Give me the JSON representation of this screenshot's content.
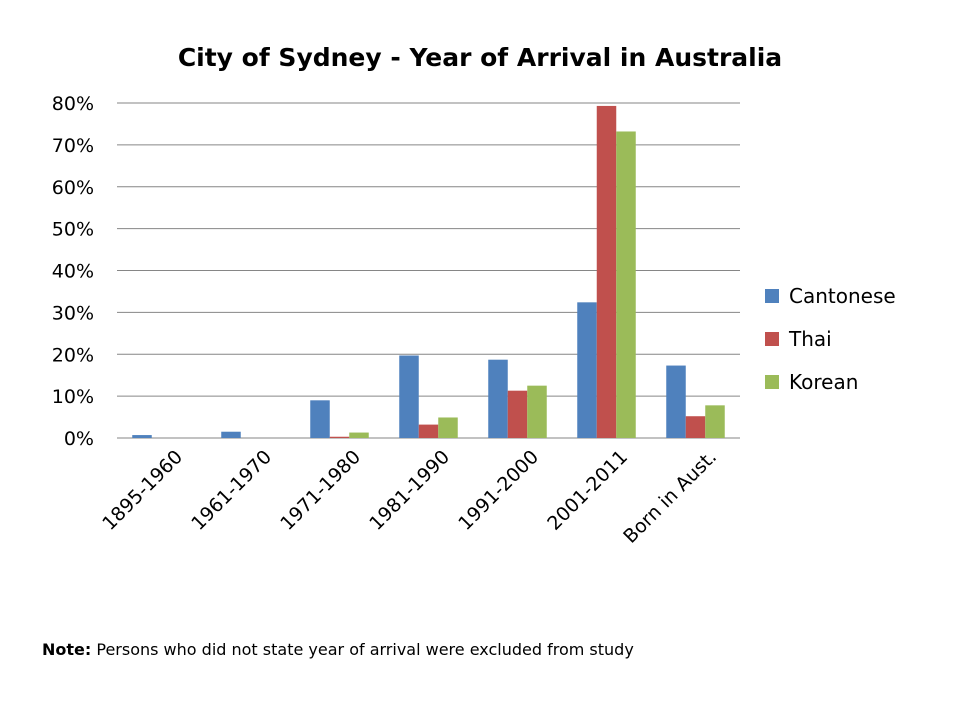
{
  "chart_data": {
    "type": "bar",
    "title": "City of Sydney - Year of Arrival in Australia",
    "xlabel": "",
    "ylabel": "",
    "categories": [
      "1895-1960",
      "1961-1970",
      "1971-1980",
      "1981-1990",
      "1991-2000",
      "2001-2011",
      "Born in Aust."
    ],
    "series": [
      {
        "name": "Cantonese",
        "color": "#4F81BD",
        "values": [
          0.7,
          1.5,
          9.0,
          19.7,
          18.7,
          32.4,
          17.3
        ]
      },
      {
        "name": "Thai",
        "color": "#C0504D",
        "values": [
          0.0,
          0.0,
          0.3,
          3.2,
          11.3,
          79.3,
          5.2
        ]
      },
      {
        "name": "Korean",
        "color": "#9BBB59",
        "values": [
          0.0,
          0.0,
          1.3,
          4.9,
          12.5,
          73.2,
          7.8
        ]
      }
    ],
    "ylim": [
      0,
      80
    ],
    "yticks": [
      "0%",
      "10%",
      "20%",
      "30%",
      "40%",
      "50%",
      "60%",
      "70%",
      "80%"
    ],
    "ytick_values": [
      0,
      10,
      20,
      30,
      40,
      50,
      60,
      70,
      80
    ],
    "grid": true,
    "legend_position": "right",
    "gridline_color": "#868686"
  },
  "note": {
    "label": "Note:",
    "text": " Persons who did not state year of arrival were excluded from study"
  }
}
